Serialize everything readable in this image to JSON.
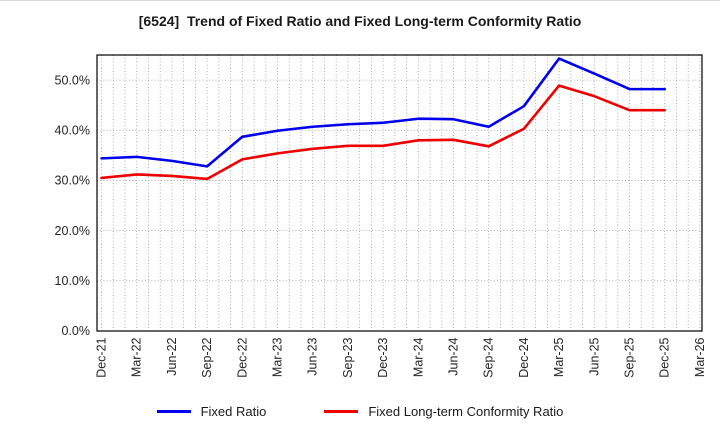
{
  "title": "[6524]  Trend of Fixed Ratio and Fixed Long-term Conformity Ratio",
  "chart_data": {
    "type": "line",
    "x": [
      "Dec-21",
      "Mar-22",
      "Jun-22",
      "Sep-22",
      "Dec-22",
      "Mar-23",
      "Jun-23",
      "Sep-23",
      "Dec-23",
      "Mar-24",
      "Jun-24",
      "Sep-24",
      "Dec-24",
      "Mar-25",
      "Jun-25",
      "Sep-25",
      "Dec-25",
      "Mar-26"
    ],
    "series": [
      {
        "name": "Fixed Ratio",
        "color": "#0000ee",
        "values": [
          34.4,
          34.7,
          33.9,
          32.8,
          38.7,
          39.9,
          40.7,
          41.2,
          41.5,
          42.3,
          42.2,
          40.7,
          44.8,
          54.3,
          51.3,
          48.2,
          48.2,
          null
        ]
      },
      {
        "name": "Fixed Long-term Conformity Ratio",
        "color": "#ee0000",
        "values": [
          30.5,
          31.2,
          30.9,
          30.3,
          34.2,
          35.4,
          36.3,
          36.9,
          36.9,
          38.0,
          38.1,
          36.8,
          40.3,
          48.9,
          46.8,
          44.0,
          44.0,
          null
        ]
      }
    ],
    "title": "[6524]  Trend of Fixed Ratio and Fixed Long-term Conformity Ratio",
    "xlabel": "",
    "ylabel": "",
    "ylim": [
      0,
      55
    ],
    "yticks": [
      0,
      10,
      20,
      30,
      40,
      50
    ],
    "ytick_labels": [
      "0.0%",
      "10.0%",
      "20.0%",
      "30.0%",
      "40.0%",
      "50.0%"
    ],
    "grid": true,
    "minor_x_divisions_per_tick": 3,
    "legend_position": "bottom",
    "line_width": 2.6,
    "grid_color": "#999999",
    "axis_color": "#000000",
    "tick_label_color": "#262626"
  }
}
